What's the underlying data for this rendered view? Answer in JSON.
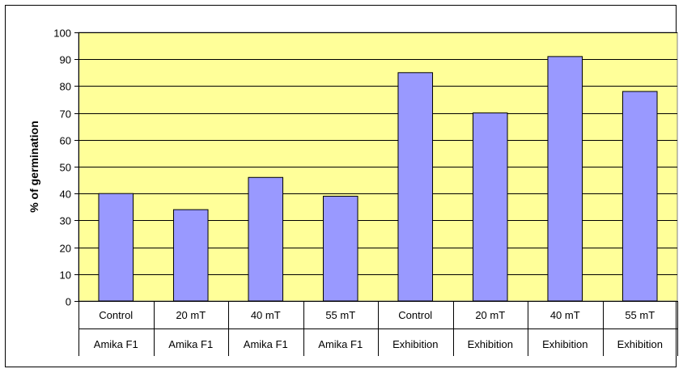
{
  "chart_data": {
    "type": "bar",
    "title": "",
    "ylabel": "% of germination",
    "xlabel": "",
    "ylim": [
      0,
      100
    ],
    "yticks": [
      0,
      10,
      20,
      30,
      40,
      50,
      60,
      70,
      80,
      90,
      100
    ],
    "grid": true,
    "legend": "none",
    "categories": [
      {
        "treatment": "Control",
        "variety": "Amika F1"
      },
      {
        "treatment": "20 mT",
        "variety": "Amika F1"
      },
      {
        "treatment": "40 mT",
        "variety": "Amika F1"
      },
      {
        "treatment": "55 mT",
        "variety": "Amika F1"
      },
      {
        "treatment": "Control",
        "variety": "Exhibition"
      },
      {
        "treatment": "20 mT",
        "variety": "Exhibition"
      },
      {
        "treatment": "40 mT",
        "variety": "Exhibition"
      },
      {
        "treatment": "55 mT",
        "variety": "Exhibition"
      }
    ],
    "values": [
      40,
      34,
      46,
      39,
      85,
      70,
      91,
      78
    ],
    "colors": {
      "plot_background": "#ffff99",
      "bar_fill": "#9999ff",
      "bar_stroke": "#000000"
    }
  }
}
